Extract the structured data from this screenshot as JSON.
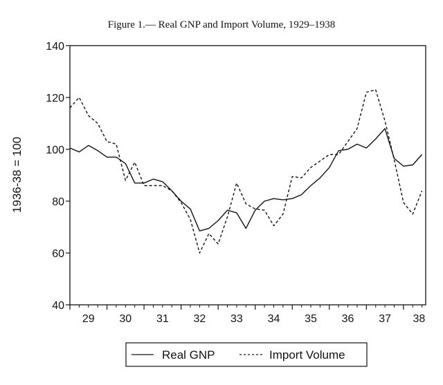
{
  "chart_data": {
    "type": "line",
    "title": "Figure 1.— Real GNP and Import Volume, 1929–1938",
    "xlabel": "",
    "ylabel": "1936-38 = 100",
    "xlim": [
      29,
      38.6
    ],
    "ylim": [
      40,
      140
    ],
    "x_ticks": [
      "29",
      "30",
      "31",
      "32",
      "33",
      "34",
      "35",
      "36",
      "37",
      "38"
    ],
    "y_ticks": [
      40,
      60,
      80,
      100,
      120,
      140
    ],
    "grid": false,
    "legend_position": "bottom-center",
    "series": [
      {
        "name": "Real GNP",
        "style": "solid",
        "x": [
          29.0,
          29.25,
          29.5,
          29.75,
          30.0,
          30.25,
          30.5,
          30.75,
          31.0,
          31.25,
          31.5,
          31.75,
          32.0,
          32.25,
          32.5,
          32.75,
          33.0,
          33.25,
          33.5,
          33.75,
          34.0,
          34.25,
          34.5,
          34.75,
          35.0,
          35.25,
          35.5,
          35.75,
          36.0,
          36.25,
          36.5,
          36.75,
          37.0,
          37.25,
          37.5,
          37.75,
          38.0,
          38.25,
          38.5
        ],
        "values": [
          100.5,
          99.0,
          101.5,
          99.5,
          97.0,
          97.0,
          94.5,
          87.0,
          87.0,
          88.5,
          87.5,
          84.0,
          80.0,
          77.0,
          68.5,
          69.5,
          72.5,
          76.5,
          75.5,
          69.5,
          76.5,
          80.0,
          81.0,
          80.5,
          81.0,
          82.5,
          86.0,
          89.0,
          93.0,
          99.5,
          100.0,
          102.0,
          100.5,
          104.0,
          108.0,
          96.5,
          93.5,
          94.0,
          98.0
        ]
      },
      {
        "name": "Import Volume",
        "style": "dashed",
        "x": [
          29.0,
          29.25,
          29.5,
          29.75,
          30.0,
          30.25,
          30.5,
          30.75,
          31.0,
          31.25,
          31.5,
          31.75,
          32.0,
          32.25,
          32.5,
          32.75,
          33.0,
          33.25,
          33.5,
          33.75,
          34.0,
          34.25,
          34.5,
          34.75,
          35.0,
          35.25,
          35.5,
          35.75,
          36.0,
          36.25,
          36.5,
          36.75,
          37.0,
          37.25,
          37.5,
          37.75,
          38.0,
          38.25,
          38.5
        ],
        "values": [
          116.0,
          120.0,
          113.0,
          110.0,
          103.0,
          102.0,
          88.0,
          95.0,
          86.0,
          86.0,
          86.0,
          84.0,
          79.5,
          73.0,
          60.0,
          67.5,
          63.5,
          74.0,
          87.0,
          79.0,
          77.0,
          76.5,
          70.5,
          75.0,
          89.5,
          89.0,
          93.0,
          95.5,
          98.0,
          98.0,
          103.0,
          108.0,
          122.0,
          123.0,
          111.0,
          96.0,
          79.5,
          75.0,
          84.0
        ]
      }
    ]
  }
}
